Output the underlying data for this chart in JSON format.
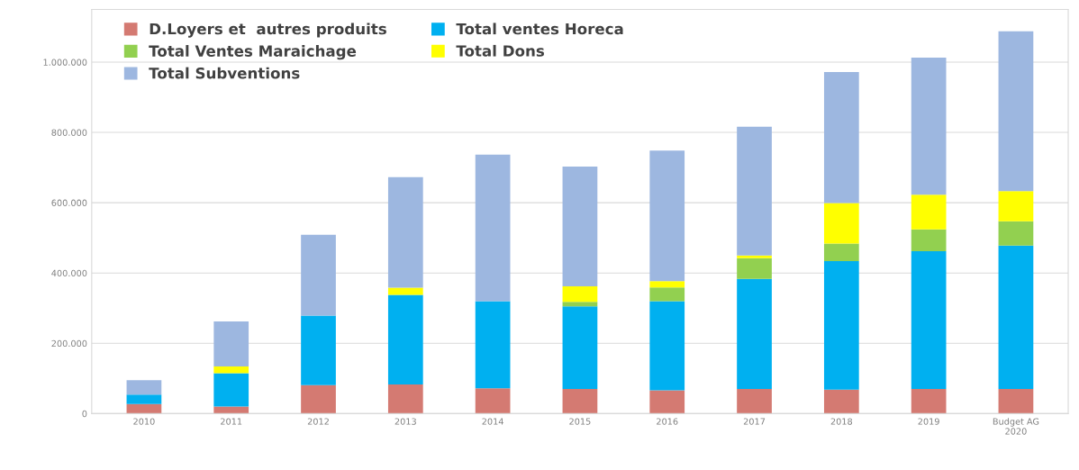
{
  "chart_data": {
    "type": "bar",
    "stacked": true,
    "categories": [
      "2010",
      "2011",
      "2012",
      "2013",
      "2014",
      "2015",
      "2016",
      "2017",
      "2018",
      "2019",
      "Budget AG\n2020"
    ],
    "series": [
      {
        "name": "D.Loyers et  autres produits",
        "color": "#d47a72",
        "values": [
          27000,
          20000,
          81000,
          83000,
          72000,
          70000,
          66000,
          70000,
          68000,
          70000,
          70000
        ]
      },
      {
        "name": "Total ventes Horeca",
        "color": "#00b0f0",
        "values": [
          27000,
          95000,
          198000,
          255000,
          248000,
          235000,
          254000,
          313000,
          366000,
          392000,
          408000
        ]
      },
      {
        "name": "Total Ventes Maraichage",
        "color": "#92d050",
        "values": [
          null,
          null,
          null,
          null,
          null,
          13000,
          39000,
          59000,
          50000,
          62000,
          69000
        ]
      },
      {
        "name": "Total Dons",
        "color": "#ffff00",
        "values": [
          null,
          19000,
          null,
          20000,
          null,
          44000,
          18000,
          8000,
          115000,
          99000,
          86000
        ]
      },
      {
        "name": "Total Subventions",
        "color": "#9db7e0",
        "values": [
          41000,
          128000,
          230000,
          315000,
          417000,
          341000,
          371000,
          366000,
          373000,
          390000,
          455000
        ]
      }
    ],
    "ylim": [
      0,
      1150000
    ],
    "yticks": [
      0,
      {
        "value": 200000,
        "label": "200.000"
      },
      {
        "value": 400000,
        "label": "400.000"
      },
      {
        "value": 600000,
        "label": "600.000"
      },
      {
        "value": 800000,
        "label": "800.000"
      },
      {
        "value": 1000000,
        "label": "1.000.000"
      }
    ],
    "grid": "y",
    "legend": "top left"
  }
}
